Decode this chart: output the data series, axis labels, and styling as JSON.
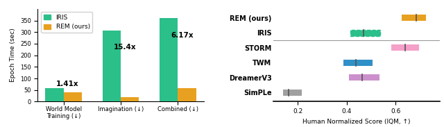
{
  "bar_chart": {
    "categories": [
      "World Model\nTraining (↓)",
      "Imagination (↓)",
      "Combined (↓)"
    ],
    "iris_values": [
      57,
      307,
      362
    ],
    "rem_values": [
      40,
      20,
      59
    ],
    "iris_color": "#2bbf8a",
    "rem_color": "#e8a020",
    "ylabel": "Epoch Time (sec)",
    "speedups": [
      "1.41x",
      "15.4x",
      "6.17x"
    ],
    "ylim": [
      0,
      400
    ],
    "yticks": [
      0,
      50,
      100,
      150,
      200,
      250,
      300,
      350
    ],
    "legend_labels": [
      "IRIS",
      "REM (ours)"
    ]
  },
  "box_chart": {
    "methods": [
      "REM (ours)",
      "IRIS",
      "STORM",
      "TWM",
      "DreamerV3",
      "SimPLe"
    ],
    "colors": [
      "#e8a020",
      "#2bbf8a",
      "#f4a0c8",
      "#3090c8",
      "#cc90cc",
      "#a0a0a0"
    ],
    "bar_data": [
      {
        "q1": 0.625,
        "median": 0.685,
        "q3": 0.725
      },
      {
        "q1": 0.415,
        "median": 0.468,
        "q3": 0.538
      },
      {
        "q1": 0.582,
        "median": 0.638,
        "q3": 0.695
      },
      {
        "q1": 0.385,
        "median": 0.438,
        "q3": 0.505
      },
      {
        "q1": 0.408,
        "median": 0.462,
        "q3": 0.535
      },
      {
        "q1": 0.138,
        "median": 0.162,
        "q3": 0.215
      }
    ],
    "xlabel": "Human Normalized Score (IQM, ↑)",
    "xlim": [
      0.1,
      0.78
    ],
    "xticks": [
      0.2,
      0.4,
      0.6
    ],
    "separator_after_idx": 1
  },
  "background_color": "#ffffff"
}
